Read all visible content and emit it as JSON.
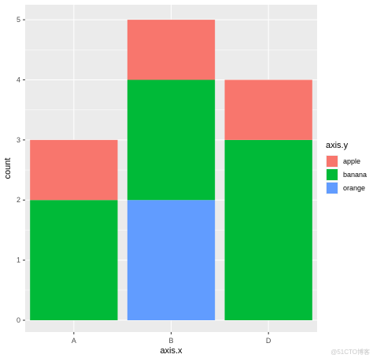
{
  "chart_data": {
    "type": "bar",
    "stacked": true,
    "categories": [
      "A",
      "B",
      "D"
    ],
    "series": [
      {
        "name": "apple",
        "values": [
          1,
          1,
          1
        ],
        "color": "#F8766D"
      },
      {
        "name": "banana",
        "values": [
          2,
          2,
          3
        ],
        "color": "#00BA38"
      },
      {
        "name": "orange",
        "values": [
          0,
          2,
          0
        ],
        "color": "#619CFF"
      }
    ],
    "xlabel": "axis.x",
    "ylabel": "count",
    "ylim": [
      0,
      5.25
    ],
    "yticks": [
      0,
      1,
      2,
      3,
      4,
      5
    ],
    "grid": true,
    "panel_background": "#EBEBEB",
    "legend": {
      "title": "axis.y",
      "position": "right",
      "order": [
        "apple",
        "banana",
        "orange"
      ]
    }
  },
  "watermark": "@51CTO博客"
}
